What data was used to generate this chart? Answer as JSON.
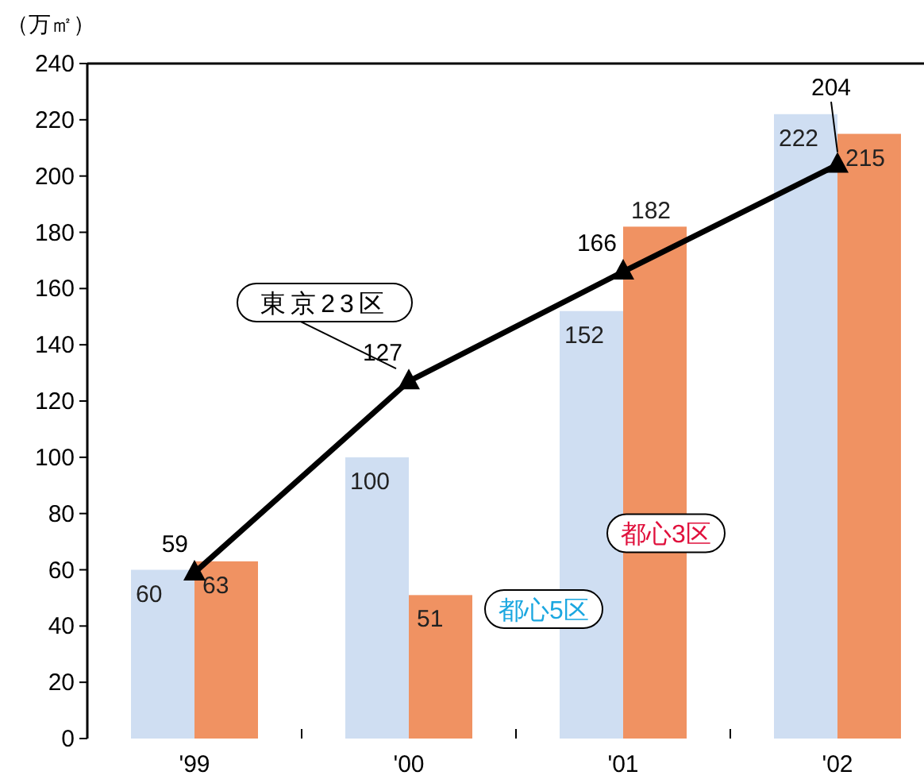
{
  "chart_data": {
    "type": "bar",
    "ylabel": "（万㎡）",
    "categories": [
      "'99",
      "'00",
      "'01",
      "'02"
    ],
    "series": [
      {
        "name": "都心5区",
        "color": "#cfdef2",
        "values": [
          60,
          100,
          152,
          222
        ]
      },
      {
        "name": "都心3区",
        "color": "#f09262",
        "values": [
          63,
          51,
          182,
          215
        ]
      },
      {
        "name": "東京23区",
        "type": "line",
        "color": "#000000",
        "marker": "triangle",
        "values": [
          59,
          127,
          166,
          204
        ]
      }
    ],
    "ylim": [
      0,
      240
    ],
    "yticks": [
      0,
      20,
      40,
      60,
      80,
      100,
      120,
      140,
      160,
      180,
      200,
      220,
      240
    ],
    "data_labels": true,
    "grid": false
  }
}
